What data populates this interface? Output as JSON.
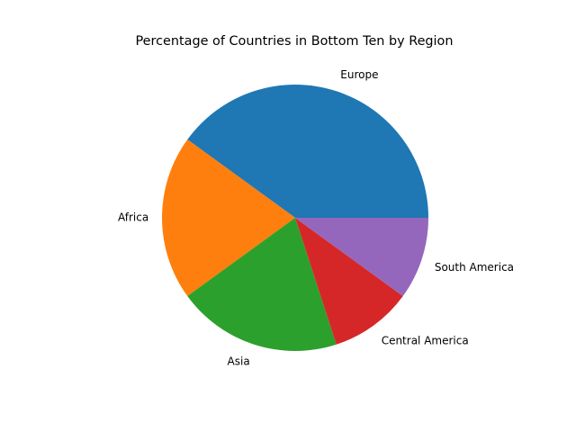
{
  "chart_data": {
    "type": "pie",
    "title": "Percentage of Countries in Bottom Ten by Region",
    "slices": [
      {
        "label": "Europe",
        "value": 40,
        "color": "#1f77b4"
      },
      {
        "label": "Africa",
        "value": 20,
        "color": "#ff7f0e"
      },
      {
        "label": "Asia",
        "value": 20,
        "color": "#2ca02c"
      },
      {
        "label": "Central America",
        "value": 10,
        "color": "#d62728"
      },
      {
        "label": "South America",
        "value": 10,
        "color": "#9467bd"
      }
    ],
    "start_angle_deg": 0,
    "direction": "counterclockwise",
    "legend": "none"
  }
}
